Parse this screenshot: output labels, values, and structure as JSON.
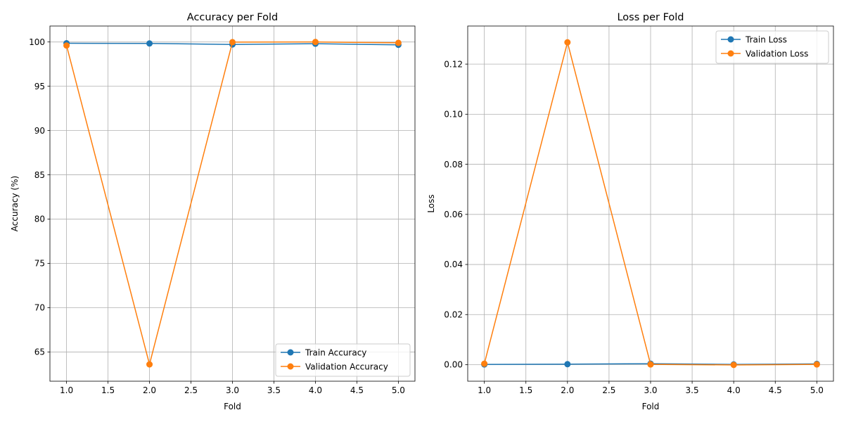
{
  "chart_data": [
    {
      "type": "line",
      "title": "Accuracy per Fold",
      "xlabel": "Fold",
      "ylabel": "Accuracy (%)",
      "xlim": [
        0.8,
        5.2
      ],
      "ylim": [
        61.7,
        101.8
      ],
      "x_ticks": [
        1.0,
        1.5,
        2.0,
        2.5,
        3.0,
        3.5,
        4.0,
        4.5,
        5.0
      ],
      "x_tick_labels": [
        "1.0",
        "1.5",
        "2.0",
        "2.5",
        "3.0",
        "3.5",
        "4.0",
        "4.5",
        "5.0"
      ],
      "y_ticks": [
        65,
        70,
        75,
        80,
        85,
        90,
        95,
        100
      ],
      "y_tick_labels": [
        "65",
        "70",
        "75",
        "80",
        "85",
        "90",
        "95",
        "100"
      ],
      "grid": true,
      "legend_position": "lower right",
      "x": [
        1,
        2,
        3,
        4,
        5
      ],
      "series": [
        {
          "name": "Train Accuracy",
          "color": "#1f77b4",
          "values": [
            99.85,
            99.83,
            99.72,
            99.8,
            99.68
          ]
        },
        {
          "name": "Validation Accuracy",
          "color": "#ff7f0e",
          "values": [
            99.6,
            63.6,
            99.98,
            100.0,
            99.9
          ]
        }
      ]
    },
    {
      "type": "line",
      "title": "Loss per Fold",
      "xlabel": "Fold",
      "ylabel": "Loss",
      "xlim": [
        0.8,
        5.2
      ],
      "ylim": [
        -0.0066,
        0.1352
      ],
      "x_ticks": [
        1.0,
        1.5,
        2.0,
        2.5,
        3.0,
        3.5,
        4.0,
        4.5,
        5.0
      ],
      "x_tick_labels": [
        "1.0",
        "1.5",
        "2.0",
        "2.5",
        "3.0",
        "3.5",
        "4.0",
        "4.5",
        "5.0"
      ],
      "y_ticks": [
        0.0,
        0.02,
        0.04,
        0.06,
        0.08,
        0.1,
        0.12
      ],
      "y_tick_labels": [
        "0.00",
        "0.02",
        "0.04",
        "0.06",
        "0.08",
        "0.10",
        "0.12"
      ],
      "grid": true,
      "legend_position": "upper right",
      "x": [
        1,
        2,
        3,
        4,
        5
      ],
      "series": [
        {
          "name": "Train Loss",
          "color": "#1f77b4",
          "values": [
            0.0001,
            0.0002,
            0.0004,
            0.0001,
            0.0003
          ]
        },
        {
          "name": "Validation Loss",
          "color": "#ff7f0e",
          "values": [
            0.0004,
            0.1287,
            0.0001,
            -0.0001,
            0.0001
          ]
        }
      ]
    }
  ]
}
